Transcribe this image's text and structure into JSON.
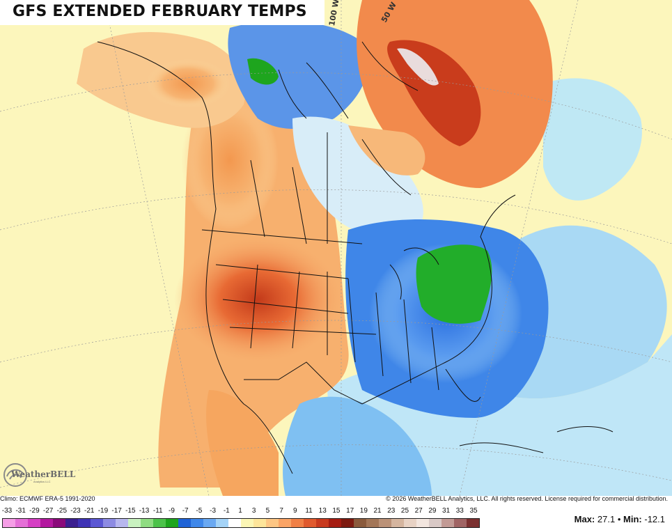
{
  "title": "GFS EXTENDED FEBRUARY TEMPS",
  "grid_labels": [
    "100 W",
    "50 W"
  ],
  "logo": {
    "brand": "WeatherBELL",
    "sub": "Analytics LLC"
  },
  "climo": "Climo: ECMWF ERA-5 1991-2020",
  "copyright": "© 2026 WeatherBELL Analytics, LLC. All rights reserved. License required for commercial distribution.",
  "legend": {
    "ticks": [
      "-33",
      "-31",
      "-29",
      "-27",
      "-25",
      "-23",
      "-21",
      "-19",
      "-17",
      "-15",
      "-13",
      "-11",
      "-9",
      "-7",
      "-5",
      "-3",
      "-1",
      "1",
      "3",
      "5",
      "7",
      "9",
      "11",
      "13",
      "15",
      "17",
      "19",
      "21",
      "23",
      "25",
      "27",
      "29",
      "31",
      "33",
      "35"
    ],
    "colors": [
      "#f59ee6",
      "#e56fd7",
      "#d63fc4",
      "#b3189f",
      "#8a0a7a",
      "#3b1f8f",
      "#3f33b5",
      "#5b57d3",
      "#8d8be3",
      "#b7b7ee",
      "#c9f2c0",
      "#8fdc82",
      "#4cc24a",
      "#1ea51e",
      "#1f63d6",
      "#3f88ea",
      "#6aa9f2",
      "#a4d3f7",
      "#ffffff",
      "#fbf6b5",
      "#fde59a",
      "#fdc684",
      "#faa466",
      "#f08046",
      "#e05a2e",
      "#c83a1e",
      "#a51c12",
      "#7d1a10",
      "#8a5a3c",
      "#a37658",
      "#bb9278",
      "#d5b59f",
      "#e8d2c4",
      "#f3e6df",
      "#d9c9c6",
      "#c29a95",
      "#a06464",
      "#7a3030"
    ]
  },
  "stats": {
    "max_label": "Max:",
    "max": "27.1",
    "sep": "•",
    "min_label": "Min:",
    "min": "-12.1"
  }
}
